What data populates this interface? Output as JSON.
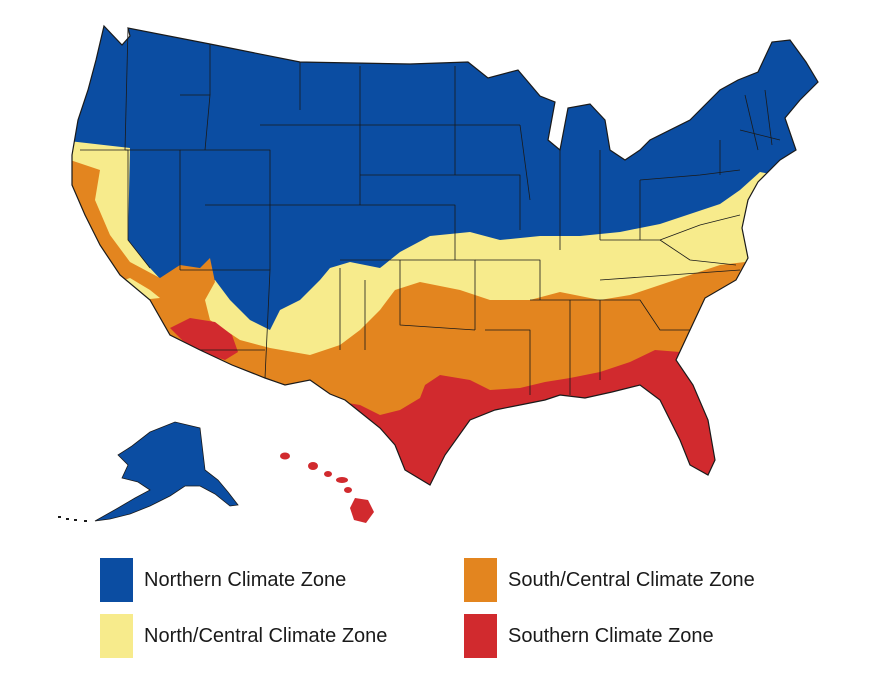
{
  "legend": {
    "northern": {
      "label": "Northern Climate Zone",
      "color": "#0b4da2"
    },
    "north_central": {
      "label": "North/Central Climate Zone",
      "color": "#f7eb8c"
    },
    "south_central": {
      "label": "South/Central Climate Zone",
      "color": "#e3851f"
    },
    "southern": {
      "label": "Southern Climate Zone",
      "color": "#d12a2e"
    }
  },
  "map": {
    "border_color": "#1a1a1a"
  }
}
